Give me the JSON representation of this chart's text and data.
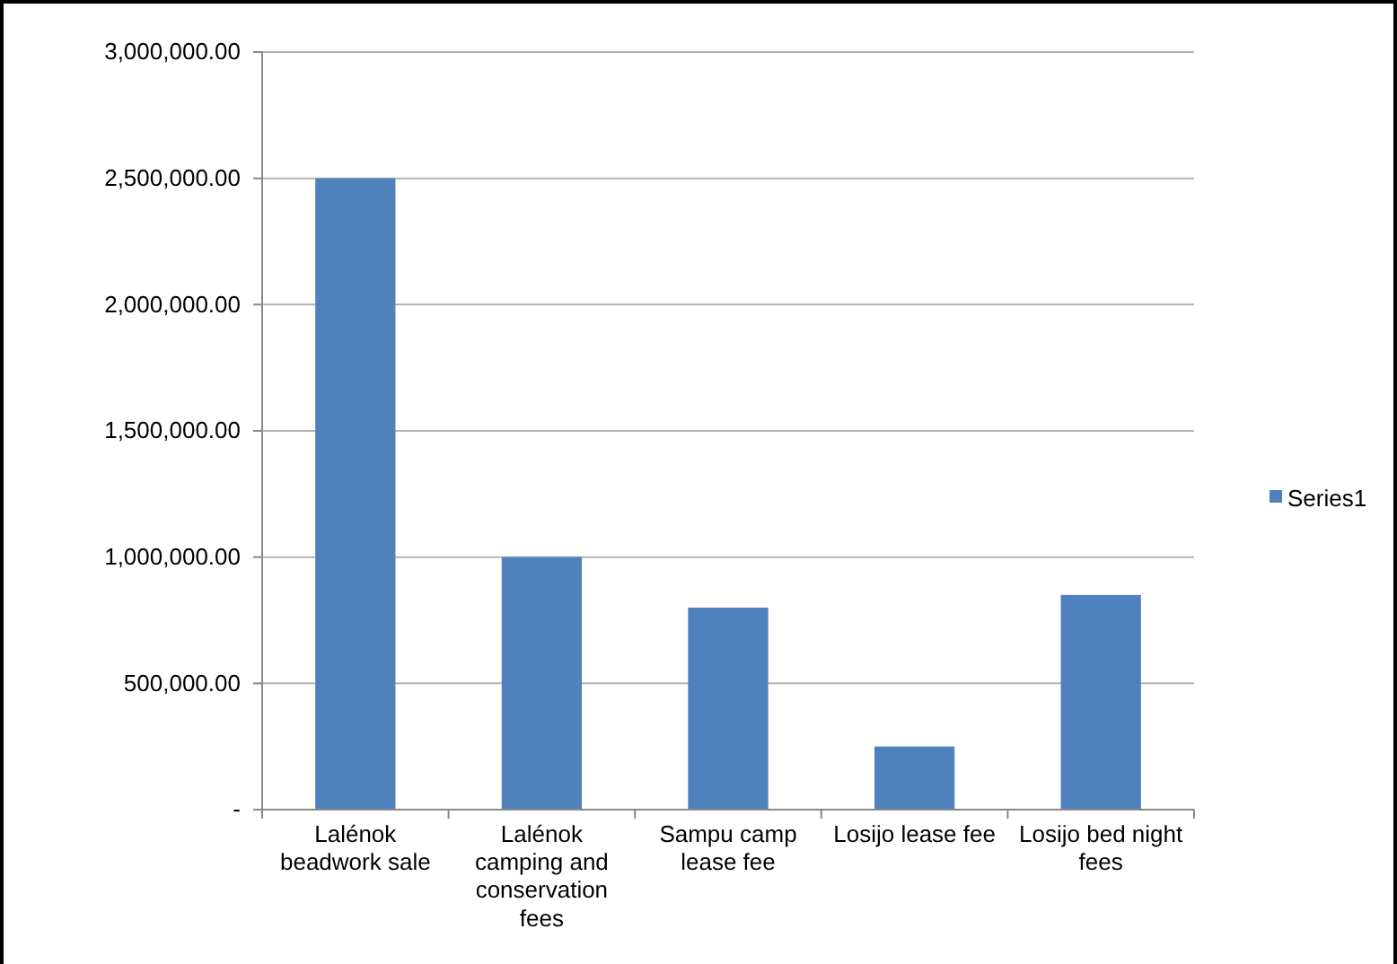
{
  "chart_data": {
    "type": "bar",
    "categories": [
      "Lalénok beadwork sale",
      "Lalénok camping and conservation fees",
      "Sampu camp lease fee",
      "Losijo lease fee",
      "Losijo bed night fees"
    ],
    "series": [
      {
        "name": "Series1",
        "color": "#4f81bd",
        "values": [
          2500000,
          1000000,
          800000,
          250000,
          850000
        ]
      }
    ],
    "ylim": [
      0,
      3000000
    ],
    "yticks": [
      {
        "value": 0,
        "label": "-"
      },
      {
        "value": 500000,
        "label": "500,000.00"
      },
      {
        "value": 1000000,
        "label": "1,000,000.00"
      },
      {
        "value": 1500000,
        "label": "1,500,000.00"
      },
      {
        "value": 2000000,
        "label": "2,000,000.00"
      },
      {
        "value": 2500000,
        "label": "2,500,000.00"
      },
      {
        "value": 3000000,
        "label": "3,000,000.00"
      }
    ],
    "grid": "y",
    "legend": "right"
  }
}
